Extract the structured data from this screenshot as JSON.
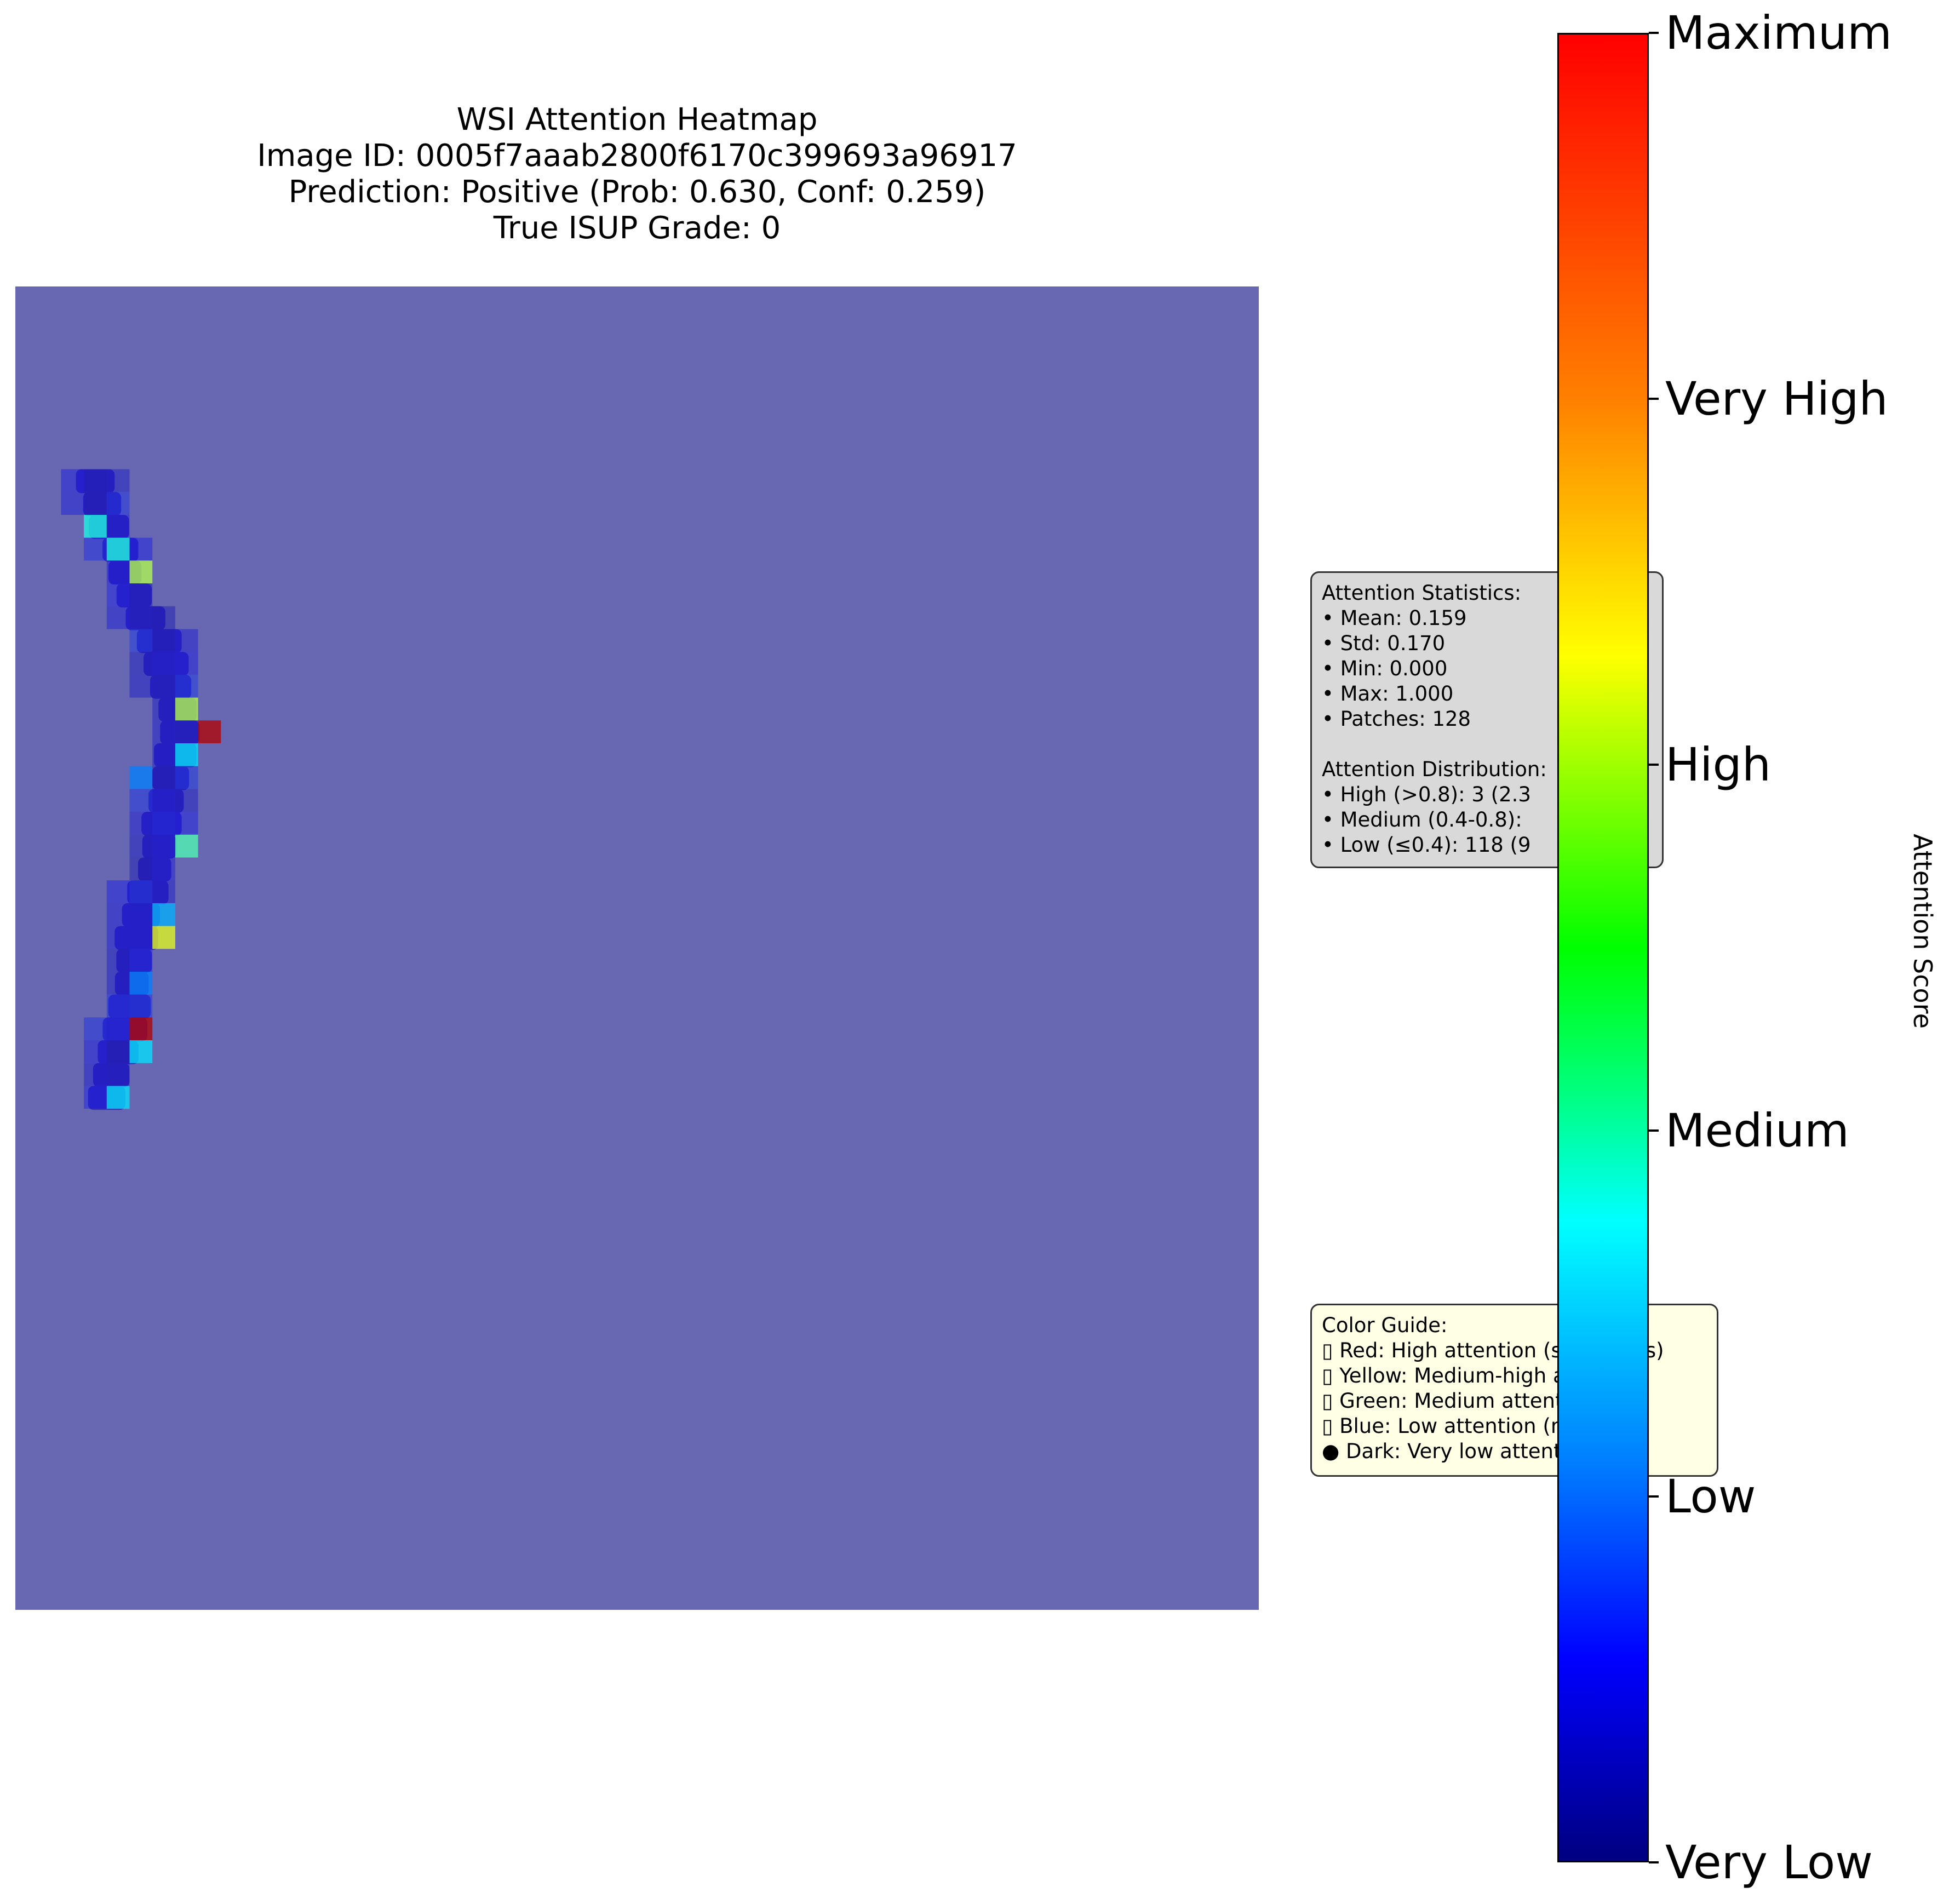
{
  "chart_data": {
    "type": "heatmap",
    "title": [
      "WSI Attention Heatmap",
      "Image ID: 0005f7aaab2800f6170c399693a96917",
      "Prediction: Positive (Prob: 0.630, Conf: 0.259)",
      "True ISUP Grade: 0"
    ],
    "colorbar": {
      "label": "Attention Score",
      "range": [
        0,
        1
      ],
      "colormap": "jet",
      "ticks": [
        {
          "value": 0.0,
          "label": "Very Low"
        },
        {
          "value": 0.2,
          "label": "Low"
        },
        {
          "value": 0.4,
          "label": "Medium"
        },
        {
          "value": 0.6,
          "label": "High"
        },
        {
          "value": 0.8,
          "label": "Very High"
        },
        {
          "value": 1.0,
          "label": "Maximum"
        }
      ]
    },
    "background_color": "#6867b1",
    "tissue_color": "#3a31b5"
  },
  "stats": {
    "lines": [
      "Attention Statistics:",
      "• Mean: 0.159",
      "• Std: 0.170",
      "• Min: 0.000",
      "• Max: 1.000",
      "• Patches: 128",
      "",
      "Attention Distribution:",
      "• High (>0.8): 3 (2.3",
      "• Medium (0.4-0.8):",
      "• Low (≤0.4): 118 (9"
    ]
  },
  "color_guide": {
    "lines": [
      "Color Guide:",
      "▯ Red: High attention (suspicious)",
      "▯ Yellow: Medium-high attention",
      "▯ Green: Medium attention",
      "▯ Blue: Low attention (normal)",
      "● Dark: Very low attention"
    ]
  }
}
